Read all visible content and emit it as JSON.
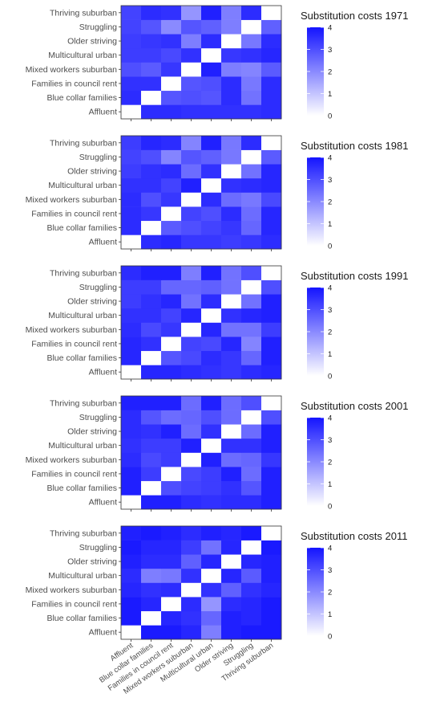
{
  "chart_data": {
    "type": "heatmap",
    "categories": [
      "Affluent",
      "Blue collar families",
      "Families in council rent",
      "Mixed workers suburban",
      "Multicultural urban",
      "Older striving",
      "Struggling",
      "Thriving suburban"
    ],
    "color_scale": {
      "min": 0,
      "max": 4,
      "ticks": [
        0,
        1,
        2,
        3,
        4
      ],
      "low_color": "#ffffff",
      "high_color": "#1414ff"
    },
    "panels": [
      {
        "legend_title": "Substitution costs 1971",
        "matrix": [
          [
            0,
            3.6,
            3.6,
            3.5,
            3.5,
            3.5,
            3.5,
            3.6
          ],
          [
            3.6,
            0,
            2.9,
            3.0,
            2.9,
            3.6,
            2.4,
            3.6
          ],
          [
            3.5,
            3.5,
            0,
            2.9,
            3.0,
            3.6,
            2.3,
            3.6
          ],
          [
            3.0,
            2.8,
            3.4,
            0,
            3.8,
            2.2,
            2.1,
            2.8
          ],
          [
            3.3,
            3.3,
            3.1,
            3.5,
            0,
            3.4,
            3.5,
            3.7
          ],
          [
            3.3,
            3.4,
            3.5,
            2.2,
            3.6,
            0,
            2.3,
            3.6
          ],
          [
            3.2,
            2.9,
            2.0,
            2.9,
            2.7,
            2.2,
            0,
            2.7
          ],
          [
            3.2,
            3.6,
            3.5,
            1.8,
            3.8,
            2.2,
            3.6,
            0
          ]
        ]
      },
      {
        "legend_title": "Substitution costs 1981",
        "matrix": [
          [
            0,
            3.6,
            3.7,
            3.4,
            3.4,
            3.3,
            3.4,
            3.6
          ],
          [
            3.6,
            0,
            2.8,
            3.0,
            3.2,
            3.4,
            2.6,
            3.7
          ],
          [
            3.6,
            3.4,
            0,
            3.2,
            3.0,
            3.6,
            2.5,
            3.7
          ],
          [
            3.6,
            3.0,
            3.4,
            0,
            3.6,
            2.5,
            2.3,
            3.1
          ],
          [
            3.5,
            3.5,
            3.2,
            3.8,
            0,
            3.5,
            3.6,
            3.7
          ],
          [
            3.3,
            3.5,
            3.6,
            2.5,
            3.5,
            0,
            2.4,
            3.7
          ],
          [
            3.2,
            3.0,
            2.1,
            2.9,
            2.7,
            2.3,
            0,
            2.8
          ],
          [
            3.3,
            3.7,
            3.6,
            2.1,
            3.8,
            2.3,
            3.6,
            0
          ]
        ]
      },
      {
        "legend_title": "Substitution costs 1991",
        "matrix": [
          [
            0,
            3.7,
            3.7,
            3.6,
            3.5,
            3.4,
            3.6,
            3.7
          ],
          [
            3.7,
            0,
            2.9,
            3.1,
            3.6,
            3.4,
            2.6,
            3.8
          ],
          [
            3.7,
            3.5,
            0,
            3.2,
            3.1,
            3.7,
            2.1,
            3.8
          ],
          [
            3.6,
            3.1,
            3.4,
            0,
            3.7,
            2.4,
            2.4,
            3.3
          ],
          [
            3.5,
            3.5,
            3.2,
            3.7,
            0,
            3.5,
            3.7,
            3.8
          ],
          [
            3.3,
            3.5,
            3.7,
            2.4,
            3.6,
            0,
            2.4,
            3.8
          ],
          [
            3.3,
            3.3,
            2.6,
            2.6,
            2.7,
            2.4,
            0,
            3.0
          ],
          [
            3.6,
            3.8,
            3.8,
            2.2,
            3.8,
            2.4,
            3.0,
            0
          ]
        ]
      },
      {
        "legend_title": "Substitution costs 2001",
        "matrix": [
          [
            0,
            3.8,
            3.8,
            3.6,
            3.5,
            3.6,
            3.6,
            3.8
          ],
          [
            3.8,
            0,
            3.0,
            3.2,
            3.3,
            3.5,
            2.9,
            3.8
          ],
          [
            3.8,
            3.3,
            0,
            3.1,
            3.3,
            3.8,
            2.5,
            3.8
          ],
          [
            3.6,
            3.1,
            3.3,
            0,
            3.8,
            2.5,
            2.6,
            3.4
          ],
          [
            3.5,
            3.3,
            3.3,
            3.8,
            0,
            3.5,
            3.5,
            3.8
          ],
          [
            3.6,
            3.5,
            3.8,
            2.5,
            3.5,
            0,
            2.5,
            3.8
          ],
          [
            3.6,
            2.9,
            2.5,
            2.6,
            3.0,
            2.5,
            0,
            3.0
          ],
          [
            3.8,
            3.8,
            3.8,
            2.5,
            3.8,
            2.5,
            3.0,
            0
          ]
        ]
      },
      {
        "legend_title": "Substitution costs 2011",
        "matrix": [
          [
            0,
            3.9,
            3.9,
            3.7,
            2.2,
            3.8,
            3.9,
            3.9
          ],
          [
            3.9,
            0,
            3.7,
            3.5,
            2.6,
            3.8,
            3.7,
            3.9
          ],
          [
            3.9,
            3.7,
            0,
            3.6,
            1.8,
            3.6,
            3.7,
            3.9
          ],
          [
            3.7,
            3.5,
            3.6,
            0,
            3.5,
            2.7,
            3.5,
            3.7
          ],
          [
            3.6,
            2.2,
            2.3,
            3.5,
            0,
            3.7,
            2.8,
            3.8
          ],
          [
            3.8,
            3.6,
            3.6,
            2.7,
            3.7,
            0,
            3.7,
            3.8
          ],
          [
            3.9,
            3.7,
            3.7,
            3.3,
            2.4,
            3.7,
            0,
            3.9
          ],
          [
            3.8,
            3.9,
            3.8,
            3.6,
            3.8,
            3.7,
            3.9,
            0
          ]
        ]
      }
    ]
  }
}
